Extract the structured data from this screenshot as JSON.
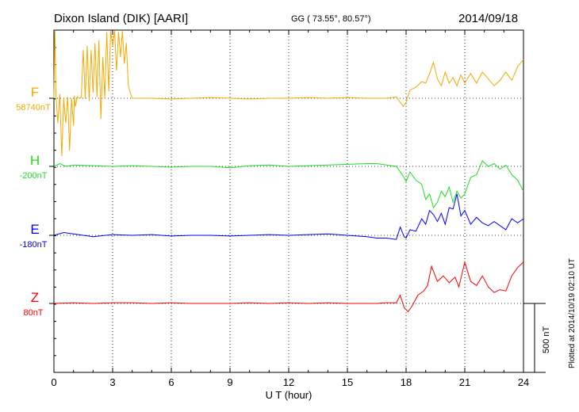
{
  "header": {
    "station": "Dixon Island (DIK)  [AARI]",
    "coords": "GG ( 73.55°,  80.57°)",
    "date": "2014/09/18"
  },
  "plotted_note": "Plotted at 2014/10/19 02:10 UT",
  "chart_data": {
    "type": "line",
    "xlabel": "U T (hour)",
    "xlim": [
      0,
      24
    ],
    "xticks": [
      "0",
      "3",
      "6",
      "9",
      "12",
      "15",
      "18",
      "21",
      "24"
    ],
    "scale_bar_label": "500 nT",
    "units": "nT (offset from baseline)",
    "series": [
      {
        "name": "F",
        "baseline": "58740nT",
        "color": "#f5a800",
        "x": [
          0,
          0.05,
          0.1,
          0.2,
          0.3,
          0.4,
          0.5,
          0.6,
          0.7,
          0.8,
          0.9,
          1.0,
          1.05,
          1.1,
          1.2,
          1.3,
          1.4,
          1.5,
          1.6,
          1.7,
          1.8,
          1.9,
          2.0,
          2.1,
          2.2,
          2.3,
          2.4,
          2.5,
          2.6,
          2.7,
          2.8,
          2.9,
          3.0,
          3.1,
          3.2,
          3.3,
          3.4,
          3.5,
          3.6,
          3.7,
          3.8,
          3.9,
          4.0,
          4.2,
          5,
          6,
          7,
          8,
          9,
          10,
          11,
          12,
          13,
          14,
          15,
          16,
          17,
          17.5,
          17.7,
          17.85,
          18.0,
          18.2,
          18.5,
          18.8,
          19.0,
          19.2,
          19.4,
          19.6,
          19.8,
          20.0,
          20.2,
          20.4,
          20.6,
          20.8,
          21.0,
          21.3,
          21.6,
          21.9,
          22.2,
          22.5,
          22.8,
          23.1,
          23.4,
          23.7,
          24.0
        ],
        "values": [
          0,
          600,
          20,
          -180,
          30,
          -420,
          0,
          -180,
          10,
          -380,
          0,
          -200,
          20,
          -60,
          10,
          0,
          5,
          350,
          0,
          380,
          -20,
          350,
          40,
          400,
          10,
          420,
          -150,
          300,
          0,
          480,
          50,
          500,
          380,
          540,
          200,
          480,
          300,
          500,
          250,
          400,
          100,
          40,
          0,
          0,
          0,
          -5,
          0,
          5,
          0,
          -5,
          0,
          0,
          5,
          0,
          5,
          0,
          0,
          10,
          -30,
          -60,
          -30,
          60,
          80,
          120,
          110,
          180,
          260,
          140,
          90,
          190,
          110,
          150,
          90,
          170,
          110,
          180,
          110,
          190,
          140,
          90,
          130,
          190,
          130,
          230,
          280
        ]
      },
      {
        "name": "H",
        "baseline": "-200nT",
        "color": "#1ee01e",
        "x": [
          0,
          0.3,
          0.6,
          1.0,
          2,
          3,
          4,
          5,
          6,
          7,
          8,
          9,
          10,
          11,
          12,
          13,
          14,
          15,
          16,
          16.5,
          17,
          17.5,
          17.8,
          18.0,
          18.2,
          18.5,
          18.8,
          19.0,
          19.2,
          19.4,
          19.6,
          19.8,
          20.0,
          20.2,
          20.4,
          20.6,
          20.8,
          21.0,
          21.3,
          21.6,
          21.9,
          22.2,
          22.5,
          22.8,
          23.1,
          23.4,
          23.7,
          24.0
        ],
        "values": [
          0,
          20,
          0,
          10,
          5,
          0,
          5,
          0,
          -5,
          0,
          0,
          -10,
          5,
          10,
          0,
          5,
          10,
          15,
          20,
          20,
          10,
          0,
          -60,
          -110,
          -40,
          -100,
          -130,
          -240,
          -200,
          -300,
          -260,
          -180,
          -220,
          -150,
          -260,
          -180,
          -230,
          -200,
          -80,
          -60,
          40,
          0,
          20,
          -20,
          10,
          -60,
          -100,
          -180
        ]
      },
      {
        "name": "E",
        "baseline": "-180nT",
        "color": "#0000ff",
        "x": [
          0,
          0.5,
          1,
          2,
          3,
          4,
          5,
          6,
          7,
          8,
          9,
          10,
          11,
          12,
          13,
          14,
          15,
          16,
          16.5,
          17,
          17.5,
          17.7,
          17.9,
          18.0,
          18.2,
          18.5,
          18.8,
          19.0,
          19.2,
          19.4,
          19.6,
          19.8,
          20.0,
          20.2,
          20.4,
          20.6,
          20.8,
          21.0,
          21.3,
          21.6,
          21.9,
          22.2,
          22.5,
          22.8,
          23.1,
          23.4,
          23.7,
          24.0
        ],
        "values": [
          0,
          20,
          10,
          -10,
          5,
          0,
          5,
          -5,
          0,
          0,
          -5,
          0,
          5,
          0,
          5,
          10,
          0,
          -10,
          -20,
          -20,
          -30,
          60,
          -10,
          -20,
          40,
          30,
          120,
          80,
          180,
          150,
          100,
          160,
          80,
          200,
          190,
          300,
          140,
          180,
          80,
          130,
          90,
          70,
          100,
          70,
          40,
          120,
          90,
          120
        ]
      },
      {
        "name": "Z",
        "baseline": "80nT",
        "color": "#ff0000",
        "x": [
          0,
          1,
          2,
          3,
          4,
          5,
          6,
          7,
          8,
          9,
          10,
          11,
          12,
          13,
          14,
          15,
          16,
          16.5,
          17,
          17.5,
          17.7,
          17.9,
          18.1,
          18.3,
          18.6,
          18.9,
          19.1,
          19.3,
          19.6,
          19.9,
          20.2,
          20.5,
          20.7,
          21.0,
          21.3,
          21.6,
          21.9,
          22.2,
          22.5,
          22.8,
          23.1,
          23.4,
          23.7,
          24.0
        ],
        "values": [
          0,
          5,
          0,
          5,
          5,
          0,
          5,
          0,
          0,
          0,
          5,
          0,
          5,
          0,
          5,
          0,
          0,
          0,
          5,
          5,
          60,
          -30,
          -60,
          -20,
          60,
          90,
          130,
          270,
          160,
          200,
          150,
          190,
          120,
          300,
          160,
          130,
          200,
          120,
          80,
          100,
          90,
          200,
          260,
          300
        ]
      }
    ]
  }
}
